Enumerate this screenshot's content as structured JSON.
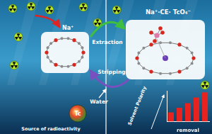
{
  "left_panel": {
    "ion_label": "Na⁺",
    "arrows": {
      "extraction": "Extraction",
      "stripping": "Stripping"
    },
    "water_label": "Water",
    "source_label": "Source of radioactivity",
    "source_symbol": "Tc"
  },
  "right_panel": {
    "complex_label": "Na⁺·CE· TcO₄⁻",
    "trend_label": "Solvent Polarity"
  },
  "chart_data": {
    "type": "bar",
    "x_label": "removal",
    "categories": [
      null,
      null,
      null,
      null,
      null
    ],
    "values": [
      30,
      45,
      60,
      78,
      95
    ],
    "color": "#e8231f",
    "ylim": [
      0,
      100
    ],
    "tick_labels": false,
    "grid": false
  }
}
